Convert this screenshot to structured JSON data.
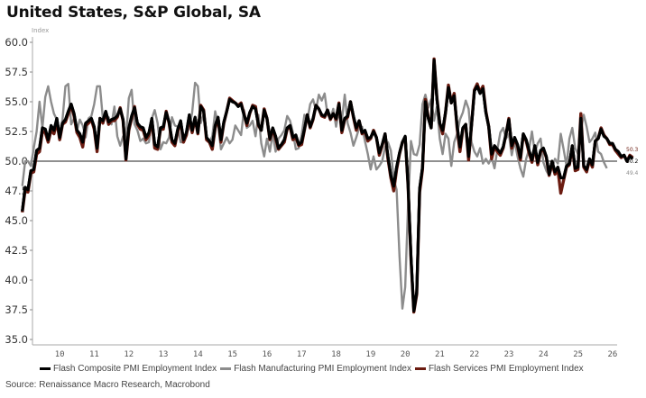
{
  "header": {
    "title": "United States, S&P Global, SA"
  },
  "footer": {
    "source": "Source: Renaissance Macro Research, Macrobond"
  },
  "chart_data": {
    "type": "line",
    "title": "United States, S&P Global, SA",
    "ylabel": "Index",
    "xlabel": "",
    "ylim": [
      35.0,
      60.0
    ],
    "yticks": [
      "35.0",
      "37.5",
      "40.0",
      "42.5",
      "45.0",
      "47.5",
      "50.0",
      "52.5",
      "55.0",
      "57.5",
      "60.0"
    ],
    "xlim": [
      2009.4,
      2026.0
    ],
    "xticks": [
      "10",
      "11",
      "12",
      "13",
      "14",
      "15",
      "16",
      "17",
      "18",
      "19",
      "20",
      "21",
      "22",
      "23",
      "24",
      "25",
      "26"
    ],
    "reference_line": 50.0,
    "legend_position": "bottom",
    "x_start": "2009-06",
    "x_frequency": "monthly",
    "end_labels": [
      "50.3",
      "50.2",
      "49.4"
    ],
    "series": [
      {
        "name": "Flash Composite PMI Employment Index",
        "color": "#000000",
        "end_value": 50.2,
        "values": [
          45.8,
          47.8,
          47.6,
          49.2,
          49.3,
          50.9,
          51.1,
          52.8,
          52.7,
          51.8,
          53.0,
          52.6,
          53.6,
          52.0,
          53.2,
          53.5,
          54.2,
          54.8,
          54.0,
          52.6,
          52.3,
          51.6,
          53.2,
          53.4,
          53.6,
          52.9,
          51.1,
          53.6,
          53.4,
          54.2,
          53.3,
          53.5,
          53.6,
          53.8,
          54.4,
          53.5,
          50.2,
          52.8,
          53.8,
          54.5,
          53.2,
          52.9,
          52.8,
          52.0,
          52.4,
          53.6,
          51.4,
          51.2,
          52.8,
          52.9,
          54.1,
          53.3,
          51.8,
          51.5,
          52.7,
          53.4,
          51.8,
          52.4,
          53.9,
          52.6,
          53.7,
          52.4,
          54.6,
          54.2,
          52.0,
          51.7,
          51.3,
          53.0,
          53.7,
          51.8,
          53.3,
          54.2,
          55.2,
          55.0,
          54.9,
          54.6,
          54.8,
          53.9,
          53.2,
          54.1,
          54.6,
          54.4,
          53.1,
          52.6,
          54.3,
          53.6,
          51.9,
          52.8,
          52.1,
          51.1,
          51.4,
          51.8,
          52.8,
          53.0,
          52.0,
          52.2,
          51.4,
          51.6,
          52.7,
          53.9,
          52.9,
          53.6,
          54.7,
          54.4,
          53.9,
          53.8,
          54.3,
          53.6,
          54.0,
          53.6,
          54.8,
          52.6,
          53.6,
          53.8,
          55.0,
          53.8,
          52.8,
          53.4,
          52.4,
          52.6,
          51.9,
          52.0,
          52.5,
          52.0,
          50.7,
          51.4,
          52.3,
          50.4,
          48.8,
          47.9,
          49.5,
          50.7,
          51.6,
          52.1,
          48.0,
          42.0,
          37.4,
          39.0,
          47.7,
          49.5,
          55.0,
          53.6,
          52.8,
          58.5,
          55.2,
          53.2,
          52.6,
          54.1,
          56.2,
          54.9,
          55.5,
          53.0,
          51.2,
          52.8,
          53.1,
          50.4,
          53.0,
          55.9,
          56.3,
          55.7,
          56.1,
          54.1,
          52.9,
          50.6,
          51.3,
          51.0,
          50.7,
          51.2,
          52.3,
          53.5,
          51.3,
          52.0,
          51.4,
          50.3,
          52.3,
          51.8,
          50.9,
          50.1,
          51.3,
          49.9,
          50.9,
          51.1,
          50.4,
          48.9,
          50.0,
          49.1,
          49.5,
          48.6,
          48.6,
          49.6,
          49.8,
          51.3,
          49.4,
          49.5,
          53.6,
          49.6,
          49.3,
          50.2,
          49.7,
          51.7,
          51.9,
          52.7,
          52.1,
          51.9,
          51.5,
          51.5,
          51.0,
          50.8,
          50.4,
          50.5,
          50.0,
          50.4,
          50.2
        ]
      },
      {
        "name": "Flash Manufacturing PMI Employment Index",
        "color": "#8c8c8c",
        "end_value": 49.4,
        "values": [
          47.9,
          50.0,
          50.0,
          49.6,
          51.1,
          52.5,
          55.0,
          52.8,
          55.4,
          56.3,
          55.0,
          54.0,
          53.5,
          52.4,
          53.5,
          56.3,
          56.5,
          53.1,
          53.6,
          52.6,
          53.5,
          53.0,
          52.0,
          53.6,
          53.8,
          54.8,
          56.3,
          56.3,
          53.6,
          53.8,
          53.7,
          53.1,
          54.6,
          52.1,
          51.3,
          52.1,
          51.8,
          55.3,
          56.0,
          53.1,
          52.6,
          51.7,
          51.9,
          51.5,
          51.6,
          53.6,
          54.3,
          53.2,
          51.0,
          51.6,
          51.5,
          52.0,
          53.7,
          53.0,
          52.9,
          51.6,
          51.6,
          52.3,
          52.8,
          54.1,
          56.6,
          56.3,
          53.2,
          54.0,
          52.0,
          51.6,
          52.1,
          54.2,
          53.1,
          51.0,
          51.5,
          52.0,
          51.5,
          51.8,
          53.0,
          52.6,
          52.2,
          54.3,
          52.8,
          53.0,
          53.4,
          52.1,
          53.9,
          51.5,
          50.4,
          51.9,
          50.8,
          52.3,
          50.8,
          51.9,
          52.2,
          52.6,
          53.8,
          53.4,
          52.4,
          51.0,
          51.1,
          52.2,
          53.9,
          53.4,
          54.8,
          55.2,
          54.3,
          55.6,
          55.1,
          55.7,
          53.9,
          53.6,
          54.4,
          52.9,
          54.3,
          53.4,
          55.6,
          53.2,
          52.4,
          51.3,
          52.0,
          52.8,
          52.9,
          51.7,
          50.6,
          49.3,
          50.4,
          49.3,
          49.6,
          50.0,
          51.2,
          51.6,
          50.9,
          48.5,
          47.6,
          42.0,
          37.6,
          39.4,
          46.3,
          51.7,
          50.6,
          50.5,
          51.4,
          54.8,
          55.6,
          54.5,
          55.2,
          53.4,
          54.6,
          51.9,
          50.6,
          52.3,
          51.9,
          49.6,
          51.6,
          52.3,
          53.5,
          54.1,
          55.1,
          54.4,
          51.6,
          50.8,
          50.4,
          51.1,
          49.8,
          50.2,
          49.8,
          50.3,
          49.4,
          51.0,
          52.4,
          52.8,
          51.9,
          52.3,
          50.5,
          51.7,
          50.4,
          49.4,
          48.7,
          50.2,
          51.0,
          52.5,
          50.7,
          51.5,
          51.9,
          49.9,
          49.2,
          48.8,
          49.4,
          50.2,
          49.8,
          52.3,
          51.0,
          49.6,
          51.9,
          52.8,
          51.1,
          50.6,
          52.6,
          53.9,
          52.9,
          51.6,
          51.9,
          52.4,
          50.8,
          50.6,
          49.9,
          49.4
        ]
      },
      {
        "name": "Flash Services PMI Employment Index",
        "color": "#6b1b10",
        "end_value": 50.3,
        "values": [
          45.7,
          47.6,
          47.4,
          49.0,
          49.1,
          50.6,
          50.8,
          52.5,
          52.4,
          51.6,
          52.6,
          52.3,
          53.3,
          51.8,
          53.1,
          53.3,
          54.0,
          54.7,
          53.8,
          52.4,
          52.0,
          51.2,
          53.0,
          53.2,
          53.5,
          52.7,
          50.8,
          53.6,
          53.2,
          54.1,
          53.1,
          53.4,
          53.4,
          53.7,
          54.5,
          53.4,
          50.1,
          52.6,
          53.6,
          54.6,
          53.1,
          52.7,
          52.6,
          51.8,
          52.2,
          53.4,
          51.1,
          51.0,
          52.7,
          52.7,
          54.2,
          53.2,
          51.6,
          51.3,
          52.5,
          53.3,
          51.6,
          52.2,
          53.7,
          52.4,
          53.6,
          52.3,
          54.7,
          54.3,
          51.8,
          51.6,
          51.0,
          52.8,
          53.6,
          51.6,
          53.2,
          54.2,
          55.3,
          55.1,
          54.9,
          54.7,
          54.9,
          54.0,
          53.0,
          54.0,
          54.7,
          54.6,
          53.0,
          52.6,
          54.4,
          53.6,
          51.8,
          52.7,
          51.9,
          51.0,
          51.3,
          51.6,
          52.7,
          52.9,
          51.8,
          52.0,
          51.3,
          51.4,
          52.6,
          53.9,
          52.8,
          53.5,
          54.7,
          54.4,
          53.8,
          53.7,
          54.3,
          53.5,
          54.0,
          53.5,
          54.9,
          52.4,
          53.5,
          53.7,
          55.0,
          53.7,
          52.6,
          53.4,
          52.3,
          52.5,
          51.7,
          51.9,
          52.6,
          52.0,
          50.5,
          51.3,
          52.3,
          50.2,
          48.6,
          47.5,
          49.3,
          50.6,
          51.6,
          52.0,
          47.9,
          41.8,
          37.3,
          38.8,
          47.4,
          49.3,
          55.2,
          53.7,
          52.8,
          58.6,
          55.3,
          53.2,
          52.3,
          54.1,
          56.4,
          54.9,
          55.7,
          52.8,
          50.8,
          52.7,
          53.1,
          50.1,
          53.0,
          56.0,
          56.5,
          55.8,
          56.3,
          54.2,
          52.9,
          50.2,
          51.2,
          50.8,
          50.5,
          51.1,
          52.3,
          53.6,
          51.1,
          51.9,
          51.3,
          50.1,
          52.2,
          51.7,
          50.7,
          49.9,
          51.2,
          49.7,
          50.8,
          51.0,
          50.3,
          48.8,
          49.9,
          48.9,
          49.3,
          47.3,
          48.4,
          49.5,
          49.7,
          51.2,
          49.2,
          49.3,
          54.0,
          49.5,
          49.1,
          50.1,
          49.5,
          51.7,
          51.9,
          52.8,
          52.2,
          51.9,
          51.4,
          51.4,
          50.9,
          50.6,
          50.3,
          50.5,
          50.0,
          50.5,
          50.3
        ]
      }
    ]
  }
}
